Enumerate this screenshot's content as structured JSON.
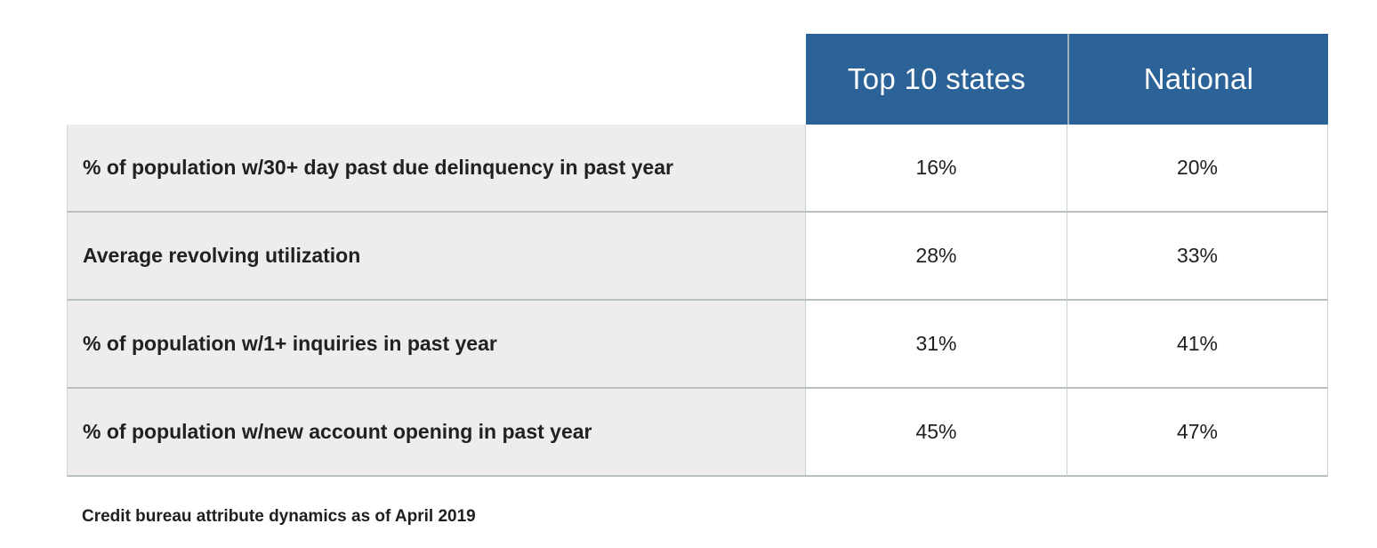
{
  "table": {
    "columns": [
      "Top 10 states",
      "National"
    ],
    "rows": [
      {
        "label": "% of population w/30+ day past due delinquency in past year",
        "values": [
          "16%",
          "20%"
        ]
      },
      {
        "label": "Average revolving utilization",
        "values": [
          "28%",
          "33%"
        ]
      },
      {
        "label": "% of population w/1+ inquiries in past year",
        "values": [
          "31%",
          "41%"
        ]
      },
      {
        "label": "% of population w/new account opening in past year",
        "values": [
          "45%",
          "47%"
        ]
      }
    ]
  },
  "footer": {
    "caption": "Credit bureau attribute dynamics as of April 2019"
  },
  "colors": {
    "header_bg": "#2b6298",
    "header_text": "#ffffff",
    "header_divider": "#9fb0bf",
    "label_cell_bg": "#ededed",
    "value_cell_bg": "#ffffff",
    "row_border": "#b9c0c4",
    "column_border": "#ccd1d4",
    "text": "#212121"
  },
  "chart_data": {
    "type": "table",
    "title": "",
    "categories": [
      "% of population w/30+ day past due delinquency in past year",
      "Average revolving utilization",
      "% of population w/1+ inquiries in past year",
      "% of population w/new account opening in past year"
    ],
    "series": [
      {
        "name": "Top 10 states",
        "values": [
          16,
          28,
          31,
          45
        ]
      },
      {
        "name": "National",
        "values": [
          20,
          33,
          41,
          47
        ]
      }
    ],
    "value_unit": "%",
    "caption": "Credit bureau attribute dynamics as of April 2019"
  }
}
